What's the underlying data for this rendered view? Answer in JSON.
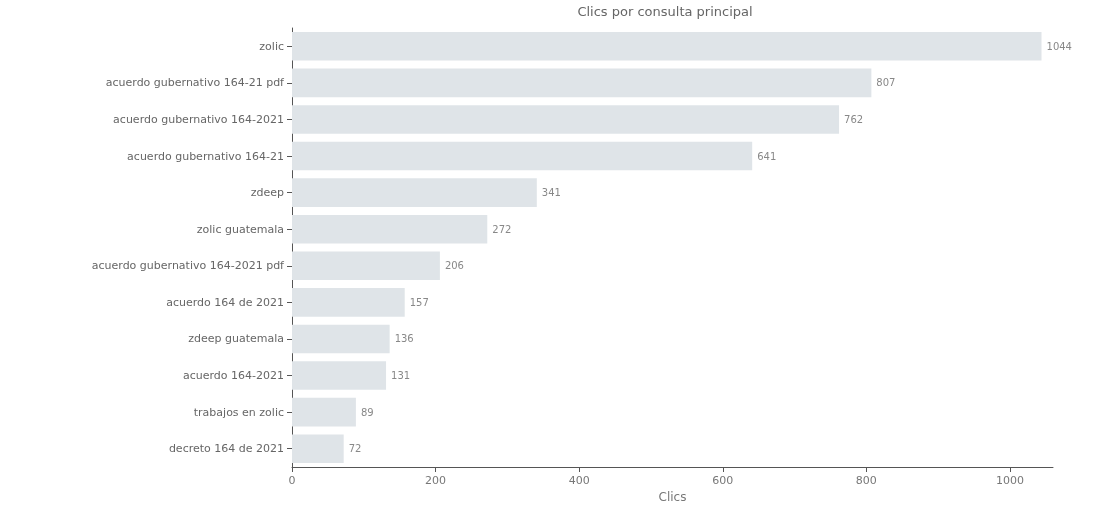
{
  "chart_data": {
    "type": "bar",
    "orientation": "horizontal",
    "title": "Clics por consulta principal",
    "xlabel": "Clics",
    "categories": [
      "zolic",
      "acuerdo gubernativo 164-21 pdf",
      "acuerdo gubernativo 164-2021",
      "acuerdo gubernativo 164-21",
      "zdeep",
      "zolic guatemala",
      "acuerdo gubernativo 164-2021 pdf",
      "acuerdo 164 de 2021",
      "zdeep guatemala",
      "acuerdo 164-2021",
      "trabajos en zolic",
      "decreto 164 de 2021"
    ],
    "values": [
      1044,
      807,
      762,
      641,
      341,
      272,
      206,
      157,
      136,
      131,
      89,
      72
    ],
    "color": "#dfe4e8",
    "xlim": [
      0,
      1060
    ],
    "xticks": [
      0,
      200,
      400,
      600,
      800,
      1000
    ],
    "grid": false,
    "data_labels": true
  }
}
